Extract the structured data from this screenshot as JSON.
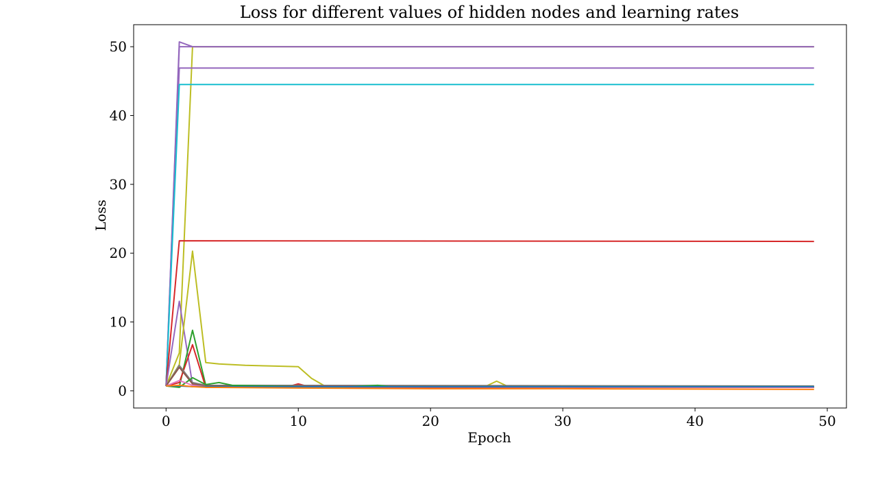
{
  "chart_data": {
    "type": "line",
    "title": "Loss for different values of hidden nodes and learning rates",
    "xlabel": "Epoch",
    "ylabel": "Loss",
    "xlim": [
      -2.45,
      51.45
    ],
    "ylim": [
      -2.5,
      53.2
    ],
    "xticks": [
      0,
      10,
      20,
      30,
      40,
      50
    ],
    "xtick_labels": [
      "0",
      "10",
      "20",
      "30",
      "40",
      "50"
    ],
    "yticks": [
      0,
      10,
      20,
      30,
      40,
      50
    ],
    "ytick_labels": [
      "0",
      "10",
      "20",
      "30",
      "40",
      "50"
    ],
    "grid": false,
    "series": [
      {
        "color": "#9467bd",
        "points": [
          [
            0,
            0.7
          ],
          [
            1,
            50.7
          ],
          [
            2,
            50.0
          ],
          [
            49,
            50.0
          ]
        ]
      },
      {
        "color": "#bcbd22",
        "points": [
          [
            0,
            0.7
          ],
          [
            1,
            5.5
          ],
          [
            2,
            50.0
          ],
          [
            49,
            50.0
          ]
        ]
      },
      {
        "color": "#9467bd",
        "points": [
          [
            0,
            0.7
          ],
          [
            1,
            50.0
          ],
          [
            49,
            50.0
          ]
        ]
      },
      {
        "color": "#9467bd",
        "points": [
          [
            0,
            0.7
          ],
          [
            1,
            46.9
          ],
          [
            49,
            46.9
          ]
        ]
      },
      {
        "color": "#17becf",
        "points": [
          [
            0,
            0.7
          ],
          [
            1,
            44.5
          ],
          [
            49,
            44.5
          ]
        ]
      },
      {
        "color": "#d62728",
        "points": [
          [
            0,
            0.7
          ],
          [
            1,
            21.8
          ],
          [
            49,
            21.7
          ]
        ]
      },
      {
        "color": "#9467bd",
        "points": [
          [
            0,
            0.7
          ],
          [
            1,
            13.0
          ],
          [
            2,
            0.9
          ],
          [
            3,
            0.6
          ],
          [
            49,
            0.6
          ]
        ]
      },
      {
        "color": "#bcbd22",
        "points": [
          [
            0,
            0.7
          ],
          [
            1,
            3.8
          ],
          [
            2,
            20.3
          ],
          [
            3,
            4.1
          ],
          [
            4,
            3.9
          ],
          [
            6,
            3.7
          ],
          [
            8,
            3.6
          ],
          [
            10,
            3.5
          ],
          [
            11,
            1.8
          ],
          [
            12,
            0.7
          ],
          [
            16,
            0.6
          ],
          [
            20,
            0.5
          ],
          [
            24,
            0.5
          ],
          [
            25,
            1.4
          ],
          [
            26,
            0.5
          ],
          [
            49,
            0.5
          ]
        ]
      },
      {
        "color": "#2ca02c",
        "points": [
          [
            0,
            0.7
          ],
          [
            1,
            0.6
          ],
          [
            2,
            8.8
          ],
          [
            3,
            0.8
          ],
          [
            4,
            0.6
          ],
          [
            10,
            0.5
          ],
          [
            49,
            0.5
          ]
        ]
      },
      {
        "color": "#d62728",
        "points": [
          [
            0,
            0.7
          ],
          [
            1,
            1.2
          ],
          [
            2,
            6.7
          ],
          [
            3,
            0.5
          ],
          [
            9,
            0.5
          ],
          [
            10,
            1.0
          ],
          [
            11,
            0.5
          ],
          [
            49,
            0.5
          ]
        ]
      },
      {
        "color": "#7f7f7f",
        "points": [
          [
            0,
            0.7
          ],
          [
            1,
            3.7
          ],
          [
            2,
            1.2
          ],
          [
            3,
            0.8
          ],
          [
            49,
            0.7
          ]
        ]
      },
      {
        "color": "#8c564b",
        "points": [
          [
            0,
            0.7
          ],
          [
            1,
            3.4
          ],
          [
            2,
            1.0
          ],
          [
            3,
            0.7
          ],
          [
            49,
            0.6
          ]
        ]
      },
      {
        "color": "#2ca02c",
        "points": [
          [
            0,
            0.7
          ],
          [
            1,
            0.5
          ],
          [
            2,
            1.9
          ],
          [
            3,
            0.9
          ],
          [
            4,
            1.2
          ],
          [
            5,
            0.8
          ],
          [
            10,
            0.6
          ],
          [
            13,
            0.5
          ],
          [
            16,
            0.8
          ],
          [
            17,
            0.6
          ],
          [
            49,
            0.6
          ]
        ]
      },
      {
        "color": "#e377c2",
        "points": [
          [
            0,
            0.7
          ],
          [
            1,
            1.5
          ],
          [
            2,
            0.8
          ],
          [
            3,
            0.6
          ],
          [
            49,
            0.5
          ]
        ]
      },
      {
        "color": "#1f77b4",
        "points": [
          [
            0,
            0.7
          ],
          [
            1,
            0.7
          ],
          [
            2,
            0.6
          ],
          [
            10,
            0.6
          ],
          [
            20,
            0.6
          ],
          [
            30,
            0.6
          ],
          [
            40,
            0.6
          ],
          [
            49,
            0.6
          ]
        ]
      },
      {
        "color": "#ff7f0e",
        "points": [
          [
            0,
            0.7
          ],
          [
            1,
            0.8
          ],
          [
            2,
            0.6
          ],
          [
            3,
            0.5
          ],
          [
            10,
            0.4
          ],
          [
            20,
            0.3
          ],
          [
            30,
            0.3
          ],
          [
            40,
            0.25
          ],
          [
            49,
            0.2
          ]
        ]
      }
    ]
  }
}
